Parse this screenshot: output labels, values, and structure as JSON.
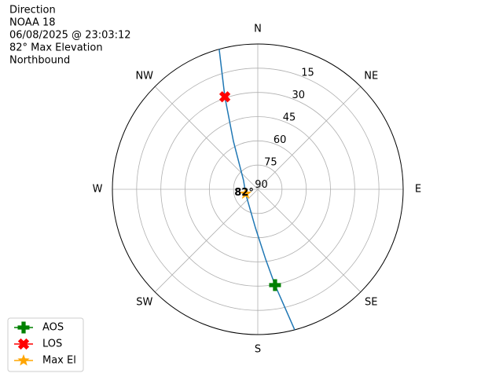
{
  "chart_data": {
    "type": "polar",
    "title_lines": [
      "Direction",
      "NOAA 18",
      "06/08/2025 @ 23:03:12",
      "82° Max Elevation",
      "Northbound"
    ],
    "xticks": [
      {
        "value": 0,
        "label": "N"
      },
      {
        "value": 45,
        "label": "NE"
      },
      {
        "value": 90,
        "label": "E"
      },
      {
        "value": 135,
        "label": "SE"
      },
      {
        "value": 180,
        "label": "S"
      },
      {
        "value": 225,
        "label": "SW"
      },
      {
        "value": 270,
        "label": "W"
      },
      {
        "value": 315,
        "label": "NW"
      }
    ],
    "ylim": [
      90,
      0
    ],
    "yticks": [
      15,
      30,
      45,
      60,
      75,
      90
    ],
    "grid": true,
    "legend": "lower left",
    "series": [
      {
        "color": "#1f77b4",
        "marker": "none",
        "x": [
          344.6,
          340.4,
          333.1,
          301.4,
          250,
          183.5,
          173.6,
          169.8,
          165.3
        ],
        "values": [
          0,
          29.2,
          56.7,
          79.7,
          82,
          66.1,
          46.4,
          29.7,
          0
        ]
      },
      {
        "name": "AOS",
        "color": "green",
        "marker": "plus",
        "x": [
          169.8
        ],
        "values": [
          29.7
        ]
      },
      {
        "name": "LOS",
        "color": "red",
        "marker": "cross",
        "x": [
          340.4
        ],
        "values": [
          29.2
        ]
      },
      {
        "name": "Max El",
        "color": "orange",
        "marker": "star",
        "x": [
          250
        ],
        "values": [
          82
        ],
        "value_labels": [
          "82°"
        ]
      }
    ]
  }
}
